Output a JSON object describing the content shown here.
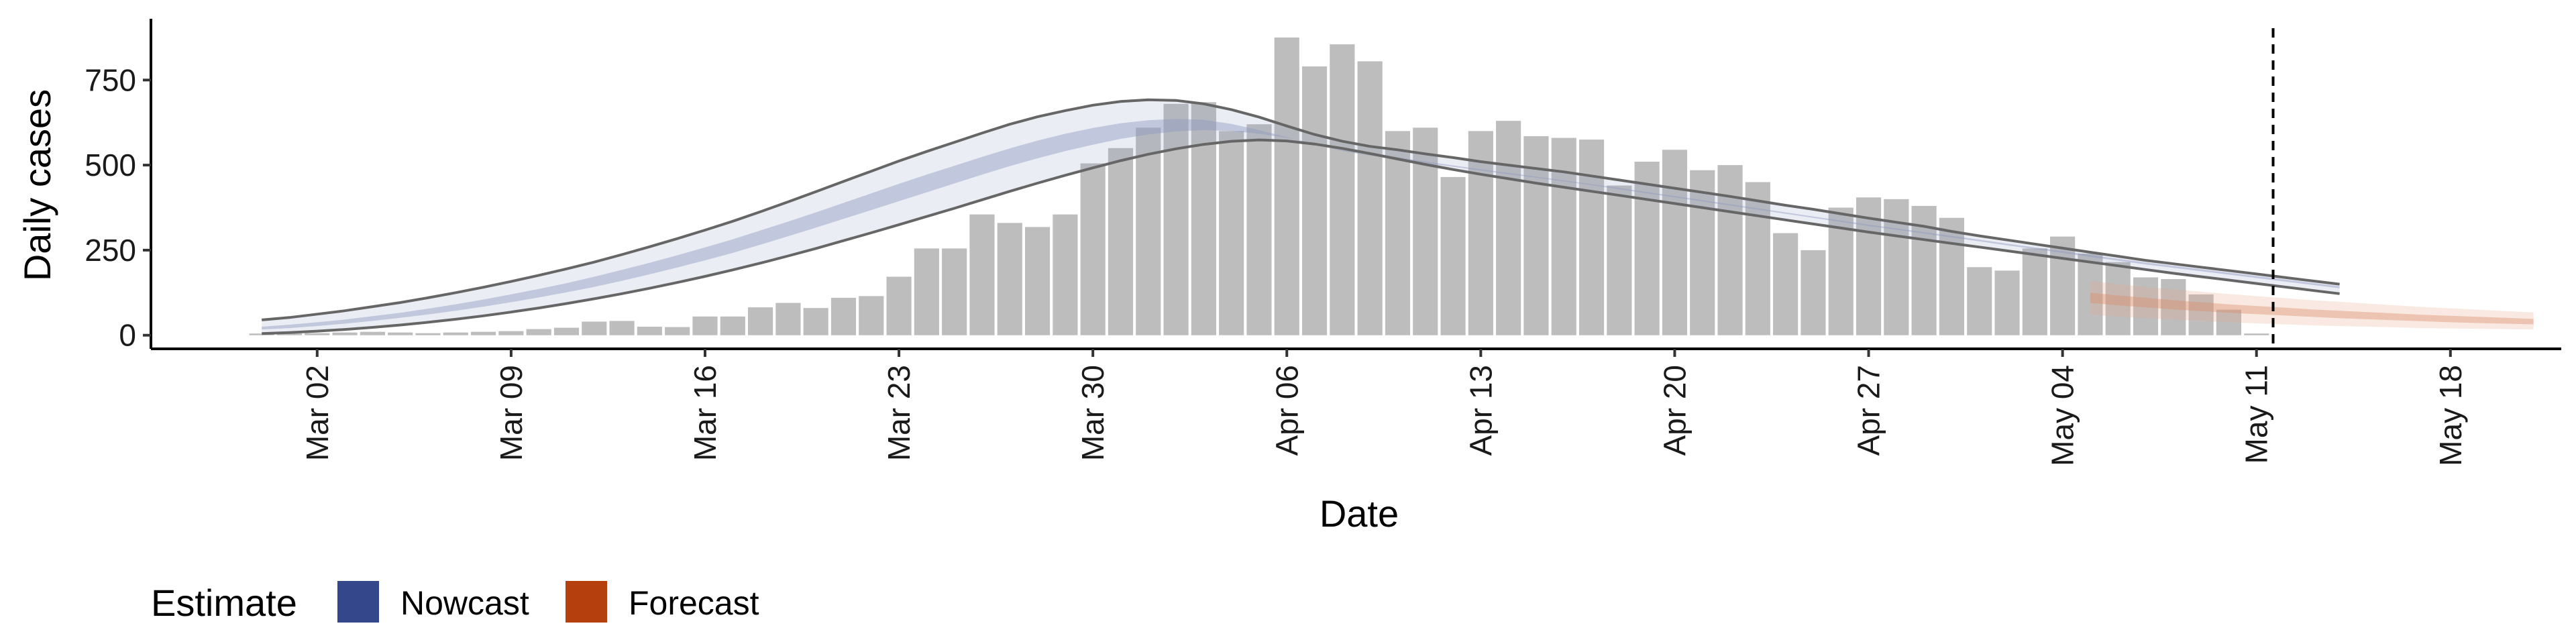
{
  "chart_data": {
    "type": "bar",
    "xlabel": "Date",
    "ylabel": "Daily cases",
    "x_tick_labels": [
      "Mar 02",
      "Mar 09",
      "Mar 16",
      "Mar 23",
      "Mar 30",
      "Apr 06",
      "Apr 13",
      "Apr 20",
      "Apr 27",
      "May 04",
      "May 11",
      "May 18"
    ],
    "x_tick_days": [
      2,
      9,
      16,
      23,
      30,
      37,
      44,
      51,
      58,
      65,
      72,
      79
    ],
    "y_ticks": [
      0,
      250,
      500,
      750
    ],
    "ylim": [
      -40,
      930
    ],
    "xlim_day": [
      -4,
      83
    ],
    "vline_day": 72.6,
    "grid": false,
    "legend": {
      "title": "Estimate",
      "position": "bottom-left",
      "entries": [
        {
          "label": "Nowcast",
          "color": "#34478a"
        },
        {
          "label": "Forecast",
          "color": "#b5400e"
        }
      ]
    },
    "bars": {
      "start_day": 0,
      "values": [
        5,
        5,
        6,
        8,
        10,
        8,
        6,
        8,
        10,
        12,
        18,
        22,
        40,
        42,
        25,
        24,
        55,
        55,
        82,
        95,
        80,
        110,
        115,
        172,
        255,
        255,
        355,
        330,
        318,
        355,
        505,
        550,
        610,
        680,
        685,
        600,
        620,
        875,
        790,
        855,
        805,
        600,
        610,
        465,
        600,
        630,
        585,
        580,
        575,
        440,
        510,
        545,
        485,
        500,
        450,
        300,
        250,
        375,
        405,
        400,
        380,
        345,
        200,
        190,
        255,
        290,
        240,
        215,
        170,
        165,
        120,
        75,
        5
      ]
    },
    "nowcast": {
      "start_day": 0,
      "outer_upper": [
        45,
        52,
        62,
        72,
        84,
        96,
        110,
        125,
        141,
        158,
        176,
        195,
        215,
        237,
        260,
        284,
        309,
        335,
        363,
        392,
        422,
        452,
        482,
        512,
        540,
        567,
        594,
        620,
        642,
        660,
        676,
        687,
        692,
        690,
        680,
        663,
        641,
        615,
        590,
        570,
        555,
        545,
        533,
        522,
        510,
        500,
        490,
        480,
        468,
        456,
        444,
        432,
        420,
        408,
        395,
        382,
        370,
        357,
        344,
        332,
        320,
        305,
        292,
        280,
        268,
        256,
        244,
        232,
        220,
        210,
        200,
        190,
        180,
        170,
        160,
        150
      ],
      "outer_lower": [
        5,
        8,
        12,
        17,
        23,
        30,
        38,
        47,
        57,
        68,
        80,
        93,
        107,
        122,
        138,
        155,
        173,
        192,
        212,
        233,
        255,
        278,
        301,
        325,
        349,
        373,
        398,
        423,
        447,
        470,
        492,
        513,
        532,
        548,
        561,
        570,
        574,
        571,
        562,
        549,
        534,
        518,
        502,
        487,
        473,
        460,
        447,
        435,
        423,
        411,
        399,
        387,
        375,
        363,
        351,
        339,
        327,
        315,
        303,
        292,
        281,
        270,
        259,
        248,
        237,
        226,
        215,
        204,
        193,
        182,
        172,
        162,
        152,
        142,
        132,
        122
      ],
      "inner_upper": [
        25,
        31,
        38,
        46,
        56,
        66,
        78,
        91,
        105,
        120,
        136,
        153,
        172,
        192,
        213,
        235,
        258,
        282,
        308,
        334,
        361,
        389,
        417,
        445,
        472,
        498,
        524,
        549,
        572,
        592,
        609,
        623,
        632,
        636,
        633,
        621,
        603,
        582,
        560,
        541,
        528,
        518,
        506,
        495,
        484,
        473,
        463,
        452,
        441,
        429,
        417,
        405,
        393,
        381,
        369,
        357,
        345,
        333,
        321,
        310,
        299,
        287,
        276,
        264,
        253,
        242,
        230,
        219,
        208,
        198,
        188,
        178,
        168,
        158,
        148,
        138
      ],
      "inner_lower": [
        17,
        21,
        27,
        34,
        42,
        51,
        61,
        72,
        84,
        97,
        111,
        126,
        142,
        160,
        179,
        199,
        220,
        242,
        266,
        291,
        316,
        342,
        368,
        394,
        420,
        446,
        472,
        497,
        520,
        541,
        560,
        577,
        590,
        599,
        603,
        600,
        592,
        580,
        564,
        549,
        535,
        523,
        511,
        499,
        488,
        477,
        466,
        455,
        444,
        433,
        421,
        409,
        397,
        385,
        373,
        361,
        349,
        337,
        325,
        314,
        303,
        292,
        281,
        269,
        258,
        247,
        236,
        225,
        214,
        204,
        194,
        184,
        174,
        164,
        154,
        144
      ]
    },
    "forecast": {
      "start_day": 66,
      "outer_upper": [
        160,
        150,
        142,
        135,
        128,
        121,
        115,
        109,
        103,
        98,
        93,
        88,
        83,
        79,
        75,
        71,
        67
      ],
      "outer_lower": [
        60,
        55,
        50,
        46,
        42,
        38,
        35,
        32,
        29,
        27,
        25,
        23,
        21,
        20,
        19,
        18,
        17
      ],
      "inner_upper": [
        125,
        117,
        110,
        103,
        97,
        91,
        86,
        81,
        76,
        72,
        68,
        64,
        60,
        57,
        54,
        51,
        48
      ],
      "inner_lower": [
        95,
        88,
        82,
        76,
        71,
        66,
        62,
        58,
        54,
        50,
        47,
        44,
        41,
        38,
        36,
        34,
        32
      ]
    }
  }
}
